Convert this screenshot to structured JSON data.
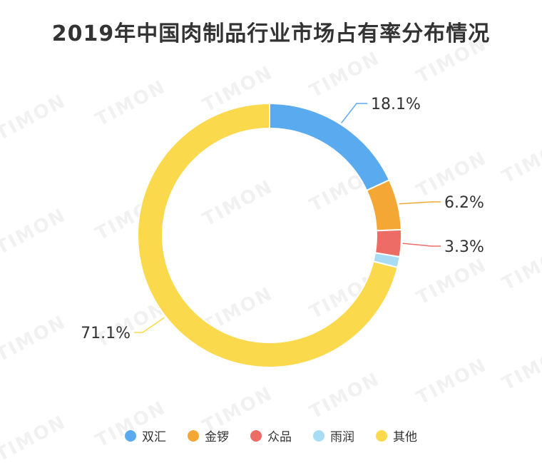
{
  "chart_data": {
    "type": "pie",
    "title": "2019年中国肉制品行业市场占有率分布情况",
    "categories": [
      "双汇",
      "金锣",
      "众品",
      "雨润",
      "其他"
    ],
    "values": [
      18.1,
      6.2,
      3.3,
      1.3,
      71.1
    ],
    "data_labels": [
      "18.1%",
      "6.2%",
      "3.3%",
      "",
      "71.1%"
    ],
    "colors": [
      "#5aaaf0",
      "#f5a735",
      "#ed6d66",
      "#a8dbf4",
      "#fbd94c"
    ],
    "legend_position": "bottom",
    "donut": true
  },
  "watermark": "TIMON"
}
